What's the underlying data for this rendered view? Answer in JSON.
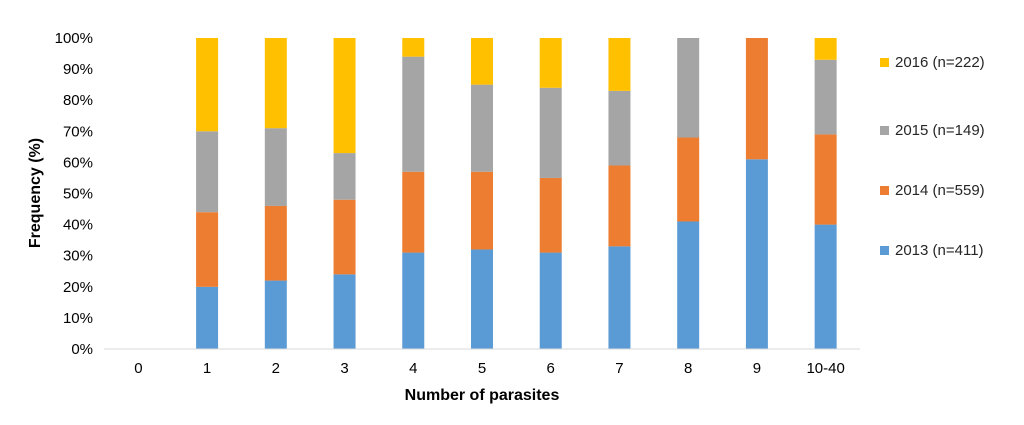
{
  "chart_data": {
    "type": "bar",
    "stacked": true,
    "xlabel": "Number of parasites",
    "ylabel": "Frequency (%)",
    "ylim": [
      0,
      100
    ],
    "yticks": [
      "0%",
      "10%",
      "20%",
      "30%",
      "40%",
      "50%",
      "60%",
      "70%",
      "80%",
      "90%",
      "100%"
    ],
    "categories": [
      "0",
      "1",
      "2",
      "3",
      "4",
      "5",
      "6",
      "7",
      "8",
      "9",
      "10-40"
    ],
    "series": [
      {
        "name": "2013 (n=411)",
        "color": "#5b9bd5",
        "values": [
          0,
          20,
          22,
          24,
          31,
          32,
          31,
          33,
          41,
          61,
          40
        ]
      },
      {
        "name": "2014 (n=559)",
        "color": "#ed7d31",
        "values": [
          0,
          24,
          24,
          24,
          26,
          25,
          24,
          26,
          27,
          39,
          29
        ]
      },
      {
        "name": "2015 (n=149)",
        "color": "#a5a5a5",
        "values": [
          0,
          26,
          25,
          15,
          37,
          28,
          29,
          24,
          32,
          0,
          24
        ]
      },
      {
        "name": "2016 (n=222)",
        "color": "#ffc000",
        "values": [
          0,
          30,
          29,
          37,
          6,
          15,
          16,
          17,
          0,
          0,
          7
        ]
      }
    ],
    "legend_position": "right",
    "grid": false
  }
}
